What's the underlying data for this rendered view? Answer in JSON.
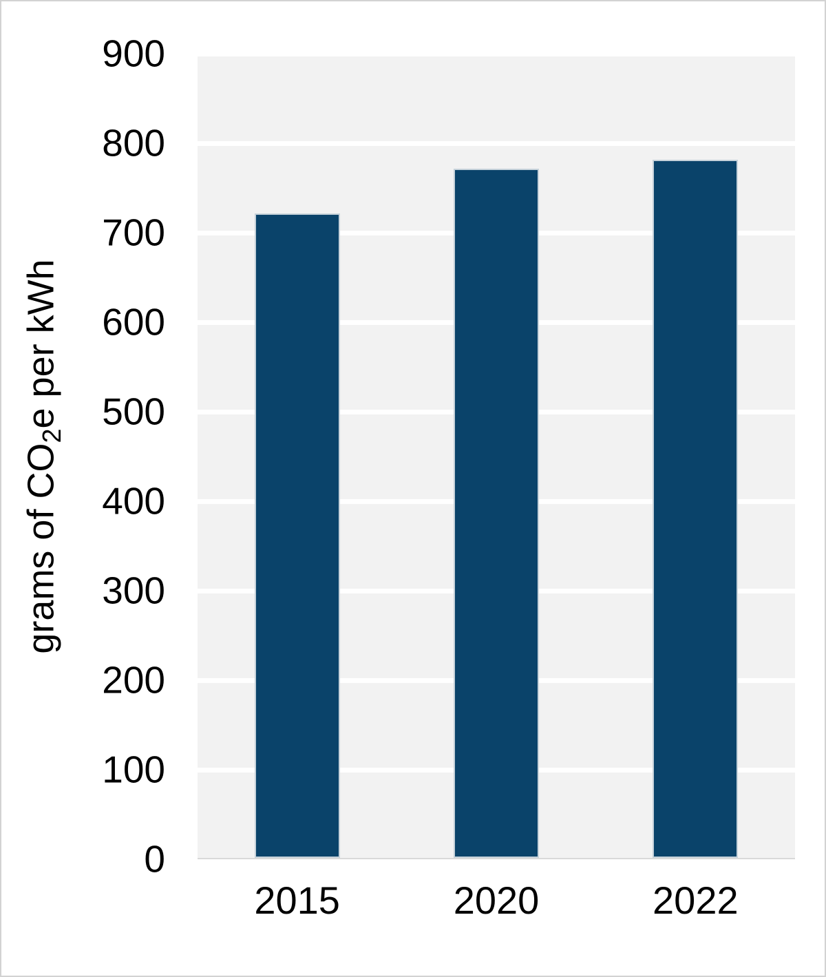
{
  "chart_data": {
    "type": "bar",
    "title": "",
    "categories": [
      "2015",
      "2020",
      "2022"
    ],
    "values": [
      720,
      770,
      780
    ],
    "series": [
      {
        "name": "grams of CO2e per kWh",
        "values": [
          720,
          770,
          780
        ]
      }
    ],
    "xlabel": "",
    "ylabel": "grams of CO₂e per kWh",
    "ylabel_parts": {
      "pre": "grams of CO",
      "sub": "2",
      "post": "e per kWh"
    },
    "ylim": [
      0,
      900
    ],
    "yticks": [
      0,
      100,
      200,
      300,
      400,
      500,
      600,
      700,
      800,
      900
    ],
    "gridline_interval": 100,
    "grid": "horizontal-major-white",
    "legend_position": "none",
    "plot_background": "light-gray"
  },
  "colors": {
    "bar": "#0a436a",
    "bar_border": "#c6d2da",
    "plot_bg": "#f2f2f2",
    "gridline": "#ffffff",
    "axis_line": "#d9d9d9",
    "text": "#000000",
    "canvas_border": "#d2d2d2"
  }
}
